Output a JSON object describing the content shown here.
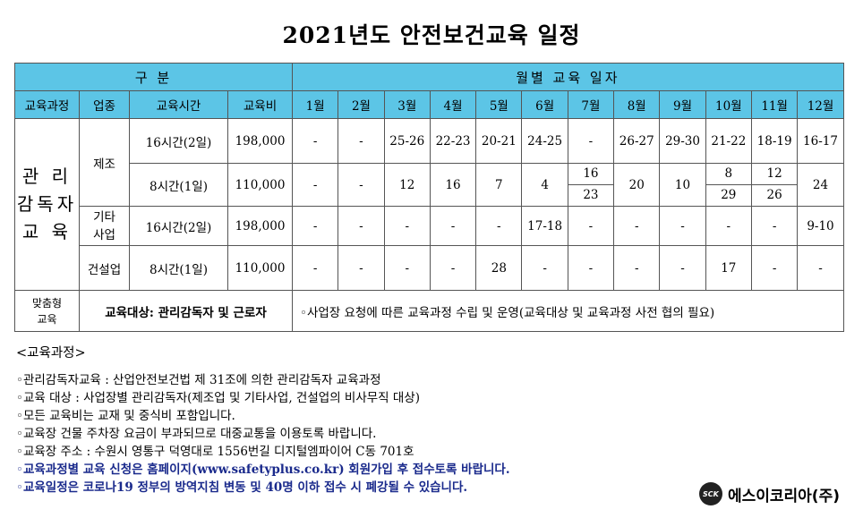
{
  "title": "2021년도 안전보건교육 일정",
  "header": {
    "group": "구 분",
    "monthly": "월별 교육 일자",
    "cols": [
      "교육과정",
      "업종",
      "교육시간",
      "교육비"
    ],
    "months": [
      "1월",
      "2월",
      "3월",
      "4월",
      "5월",
      "6월",
      "7월",
      "8월",
      "9월",
      "10월",
      "11월",
      "12월"
    ]
  },
  "course": {
    "line1": "관 리",
    "line2": "감독자",
    "line3": "교 육"
  },
  "rows": {
    "manufacturing": "제조",
    "other": "기타\n사업",
    "construction": "건설업",
    "r1": {
      "hours": "16시간(2일)",
      "fee": "198,000",
      "m": [
        "-",
        "-",
        "25-26",
        "22-23",
        "20-21",
        "24-25",
        "-",
        "26-27",
        "29-30",
        "21-22",
        "18-19",
        "16-17"
      ]
    },
    "r2": {
      "hours": "8시간(1일)",
      "fee": "110,000",
      "m": [
        "-",
        "-",
        "12",
        "16",
        "7",
        "4",
        "",
        "20",
        "10",
        "",
        "",
        "24"
      ],
      "jul": [
        "16",
        "23"
      ],
      "oct": [
        "8",
        "29"
      ],
      "nov": [
        "12",
        "26"
      ]
    },
    "r3": {
      "hours": "16시간(2일)",
      "fee": "198,000",
      "m": [
        "-",
        "-",
        "-",
        "-",
        "-",
        "17-18",
        "-",
        "-",
        "-",
        "-",
        "-",
        "9-10"
      ]
    },
    "r4": {
      "hours": "8시간(1일)",
      "fee": "110,000",
      "m": [
        "-",
        "-",
        "-",
        "-",
        "28",
        "-",
        "-",
        "-",
        "-",
        "17",
        "-",
        "-"
      ]
    }
  },
  "custom": {
    "label1": "맞춤형",
    "label2": "교육",
    "target": "교육대상: 관리감독자 및 근로자",
    "desc": "◦사업장 요청에 따른 교육과정 수립 및 운영(교육대상 및 교육과정 사전 협의 필요)"
  },
  "notes": {
    "header": "<교육과정>",
    "items": [
      "◦관리감독자교육 : 산업안전보건법 제 31조에 의한 관리감독자 교육과정",
      "◦교육 대상 : 사업장별 관리감독자(제조업 및 기타사업, 건설업의 비사무직 대상)",
      "◦모든 교육비는 교재 및 중식비 포함입니다.",
      "◦교육장 건물 주차장 요금이 부과되므로 대중교통을 이용토록 바랍니다.",
      "◦교육장 주소 : 수원시 영통구 덕영대로 1556번길 디지털엠파이어 C동 701호"
    ],
    "blue1": "◦교육과정별 교육 신청은 홈페이지(www.safetyplus.co.kr) 회원가입 후 접수토록 바랍니다.",
    "blue2": "◦교육일정은 코로나19 정부의 방역지침 변동 및 40명 이하 접수 시 폐강될 수 있습니다."
  },
  "company": {
    "logo": "SCK",
    "name": "에스이코리아(주)"
  }
}
